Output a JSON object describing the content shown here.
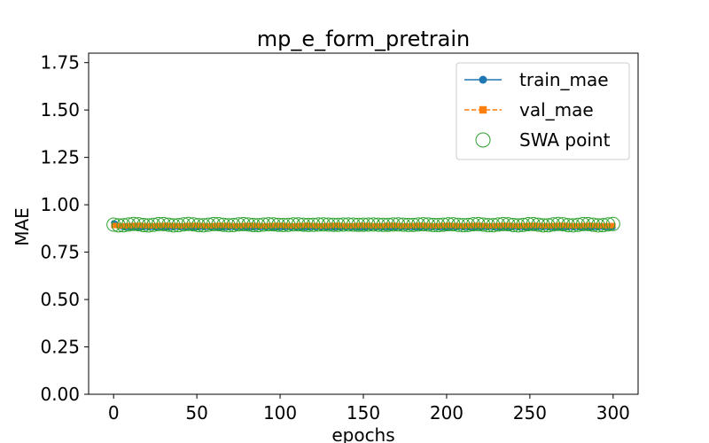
{
  "chart_data": {
    "type": "line",
    "title": "mp_e_form_pretrain",
    "xlabel": "epochs",
    "ylabel": "MAE",
    "xlim": [
      -15,
      315
    ],
    "ylim": [
      0.0,
      1.8
    ],
    "xticks": [
      0,
      50,
      100,
      150,
      200,
      250,
      300
    ],
    "yticks": [
      0.0,
      0.25,
      0.5,
      0.75,
      1.0,
      1.25,
      1.5,
      1.75
    ],
    "ytick_labels": [
      "0.00",
      "0.25",
      "0.50",
      "0.75",
      "1.00",
      "1.25",
      "1.50",
      "1.75"
    ],
    "grid": false,
    "legend_position": "top-right",
    "series": [
      {
        "name": "train_mae",
        "color": "#1f77b4",
        "marker": "circle",
        "linestyle": "solid",
        "x_start": 0,
        "x_end": 300,
        "x_step": 1,
        "start_value": 0.905,
        "steady_value": 0.88
      },
      {
        "name": "val_mae",
        "color": "#ff7f0e",
        "marker": "square",
        "linestyle": "dashed",
        "x_start": 0,
        "x_end": 300,
        "x_step": 1,
        "start_value": 0.89,
        "steady_value": 0.89
      },
      {
        "name": "SWA point",
        "color": "#2ca02c",
        "marker": "open-circle",
        "linestyle": "none",
        "x_start": 0,
        "x_end": 300,
        "x_step": 3,
        "value": 0.895
      }
    ]
  }
}
